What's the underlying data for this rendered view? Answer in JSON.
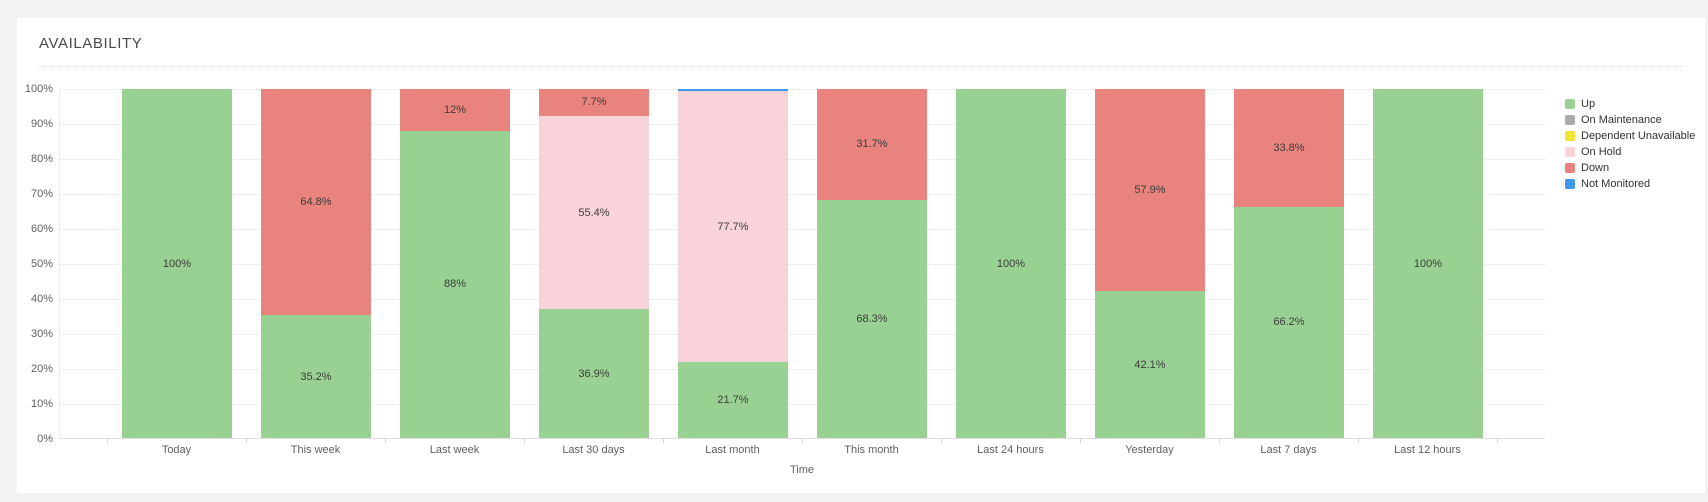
{
  "card": {
    "title": "AVAILABILITY"
  },
  "colors": {
    "page_background": "#f2f3f2",
    "card_background": "#ffffff",
    "gridline": "#efefef",
    "axis_line": "#e0e0e0",
    "tick_label_text": "#5f5f5f",
    "segment_label_text": "#3c3c3c",
    "up_green": "#98D192",
    "on_maintenance_gray": "#ABABAB",
    "dependent_unavailable_yellow": "#F2E635",
    "on_hold_pink": "#F8D3DA",
    "down_red": "#E8837E",
    "not_monitored_blue": "#3E97E8"
  },
  "chart_data": {
    "type": "bar",
    "stacked": true,
    "title": "AVAILABILITY",
    "xlabel": "Time",
    "ylabel": "",
    "ylim": [
      0,
      100
    ],
    "y_ticks": [
      "100%",
      "90%",
      "80%",
      "70%",
      "60%",
      "50%",
      "40%",
      "30%",
      "20%",
      "10%",
      "0%"
    ],
    "grid": true,
    "legend_position": "right",
    "data_labels": true,
    "data_label_min_value": 2,
    "categories": [
      "Today",
      "This week",
      "Last week",
      "Last 30 days",
      "Last month",
      "This month",
      "Last 24 hours",
      "Yesterday",
      "Last 7 days",
      "Last 12 hours"
    ],
    "series": [
      {
        "name": "Up",
        "color": "#98D192",
        "values": [
          100,
          35.2,
          88,
          36.9,
          21.7,
          68.3,
          100,
          42.1,
          66.2,
          100
        ]
      },
      {
        "name": "On Maintenance",
        "color": "#ABABAB",
        "values": [
          0,
          0,
          0,
          0,
          0,
          0,
          0,
          0,
          0,
          0
        ]
      },
      {
        "name": "Dependent Unavailable",
        "color": "#F2E635",
        "values": [
          0,
          0,
          0,
          0,
          0,
          0,
          0,
          0,
          0,
          0
        ]
      },
      {
        "name": "On Hold",
        "color": "#F8D3DA",
        "values": [
          0,
          0,
          0,
          55.4,
          77.7,
          0,
          0,
          0,
          0,
          0
        ]
      },
      {
        "name": "Down",
        "color": "#E8837E",
        "values": [
          0,
          64.8,
          12,
          7.7,
          0,
          31.7,
          0,
          57.9,
          33.8,
          0
        ]
      },
      {
        "name": "Not Monitored",
        "color": "#3E97E8",
        "values": [
          0,
          0,
          0,
          0,
          0.6,
          0,
          0,
          0,
          0,
          0
        ]
      }
    ],
    "visible_segment_labels": [
      "100%",
      "35.2%",
      "64.8%",
      "88%",
      "12%",
      "36.9%",
      "55.4%",
      "7.7%",
      "21.7%",
      "77.7%",
      "68.3%",
      "31.7%",
      "100%",
      "42.1%",
      "57.9%",
      "66.2%",
      "33.8%",
      "100%"
    ]
  }
}
